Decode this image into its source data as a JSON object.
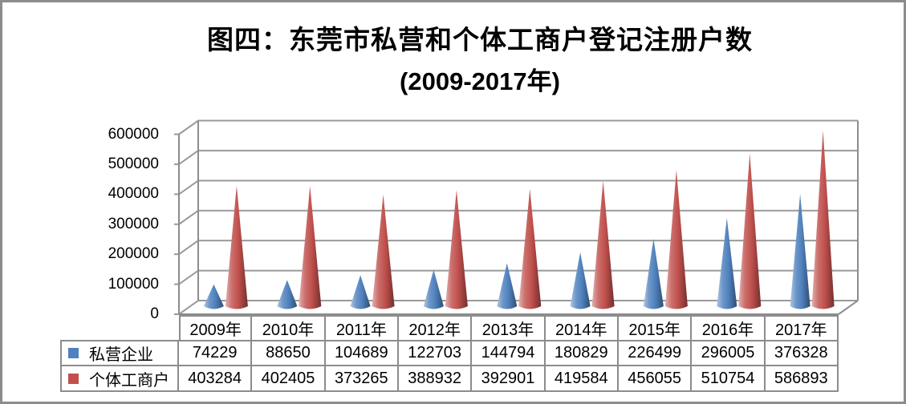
{
  "frame": {
    "background_color": "#FFFFFF",
    "border_color": "#8C8C8C"
  },
  "chart_data": {
    "type": "bar",
    "style": "3d-clustered-cone",
    "title": "图四：东莞市私营和个体工商户登记注册户数",
    "subtitle": "(2009-2017年)",
    "categories": [
      "2009年",
      "2010年",
      "2011年",
      "2012年",
      "2013年",
      "2014年",
      "2015年",
      "2016年",
      "2017年"
    ],
    "series": [
      {
        "name": "私营企业",
        "color": "#4F81BD",
        "values": [
          74229,
          88650,
          104689,
          122703,
          144794,
          180829,
          226499,
          296005,
          376328
        ]
      },
      {
        "name": "个体工商户",
        "color": "#C0504D",
        "values": [
          403284,
          402405,
          373265,
          388932,
          392901,
          419584,
          456055,
          510754,
          586893
        ]
      }
    ],
    "y_axis": {
      "min": 0,
      "max": 600000,
      "step": 100000,
      "tick_labels": [
        "0",
        "100000",
        "200000",
        "300000",
        "400000",
        "500000",
        "600000"
      ]
    },
    "x_axis_label": "",
    "y_axis_label": "",
    "grid": true,
    "grid_color": "#9A9A9A",
    "axis_color": "#8C8C8C",
    "table_border_color": "#8C8C8C",
    "legend_position": "data-table-left",
    "data_table_shown": true
  }
}
